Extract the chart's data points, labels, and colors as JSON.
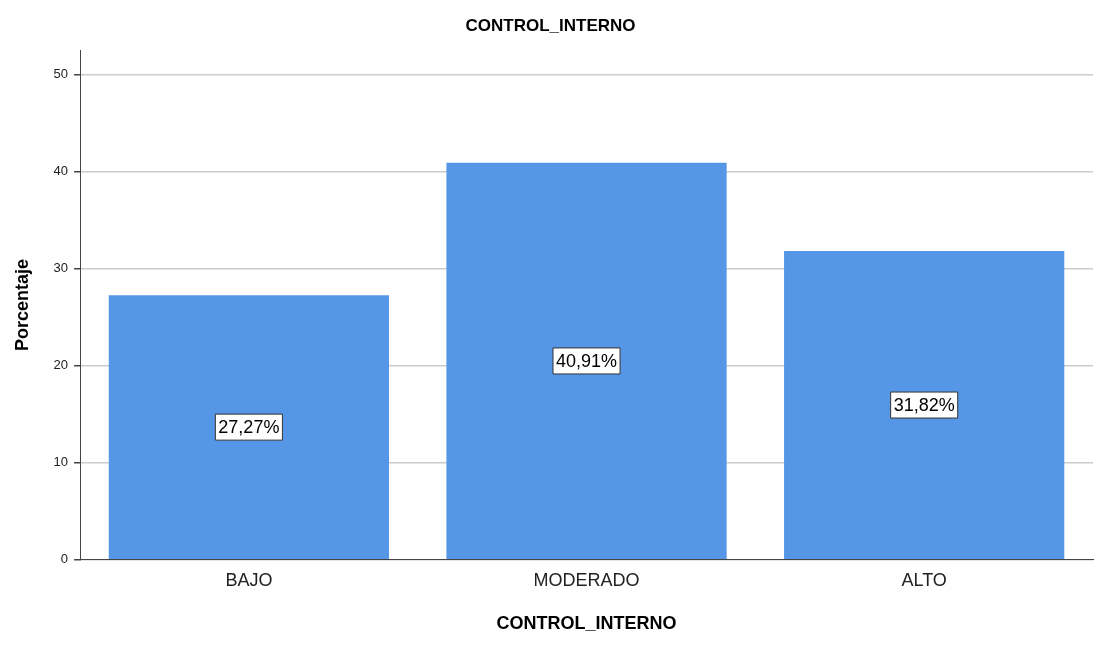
{
  "chart_data": {
    "type": "bar",
    "title": "CONTROL_INTERNO",
    "xlabel": "CONTROL_INTERNO",
    "ylabel": "Porcentaje",
    "categories": [
      "BAJO",
      "MODERADO",
      "ALTO"
    ],
    "values": [
      27.27,
      40.91,
      31.82
    ],
    "value_labels": [
      "27,27%",
      "40,91%",
      "31,82%"
    ],
    "color": "#5596e6",
    "ylim": [
      0,
      52.5
    ],
    "yticks": [
      0,
      10,
      20,
      30,
      40,
      50
    ],
    "grid": "y"
  }
}
